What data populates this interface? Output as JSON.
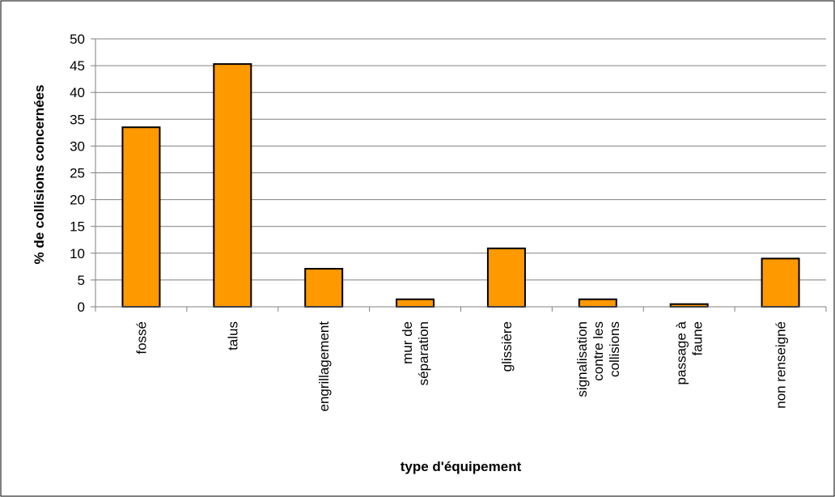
{
  "chart_data": {
    "type": "bar",
    "title": "",
    "xlabel": "type d'équipement",
    "ylabel": "% de collisions concernées",
    "ylim": [
      0,
      50
    ],
    "yticks": [
      0,
      5,
      10,
      15,
      20,
      25,
      30,
      35,
      40,
      45,
      50
    ],
    "grid": true,
    "legend": "none",
    "categories": [
      [
        "fossé"
      ],
      [
        "talus"
      ],
      [
        "engrillagement"
      ],
      [
        "mur de",
        "séparation"
      ],
      [
        "glissière"
      ],
      [
        "signalisation",
        "contre les",
        "collisions"
      ],
      [
        "passage à",
        "faune"
      ],
      [
        "non renseigné"
      ]
    ],
    "values": [
      33.5,
      45.3,
      7.1,
      1.4,
      10.9,
      1.4,
      0.5,
      9.0
    ],
    "colors": {
      "bar_fill": "#FF9900",
      "bar_stroke": "#000000",
      "grid": "#808080",
      "axis": "#808080",
      "frame": "#000000"
    }
  }
}
